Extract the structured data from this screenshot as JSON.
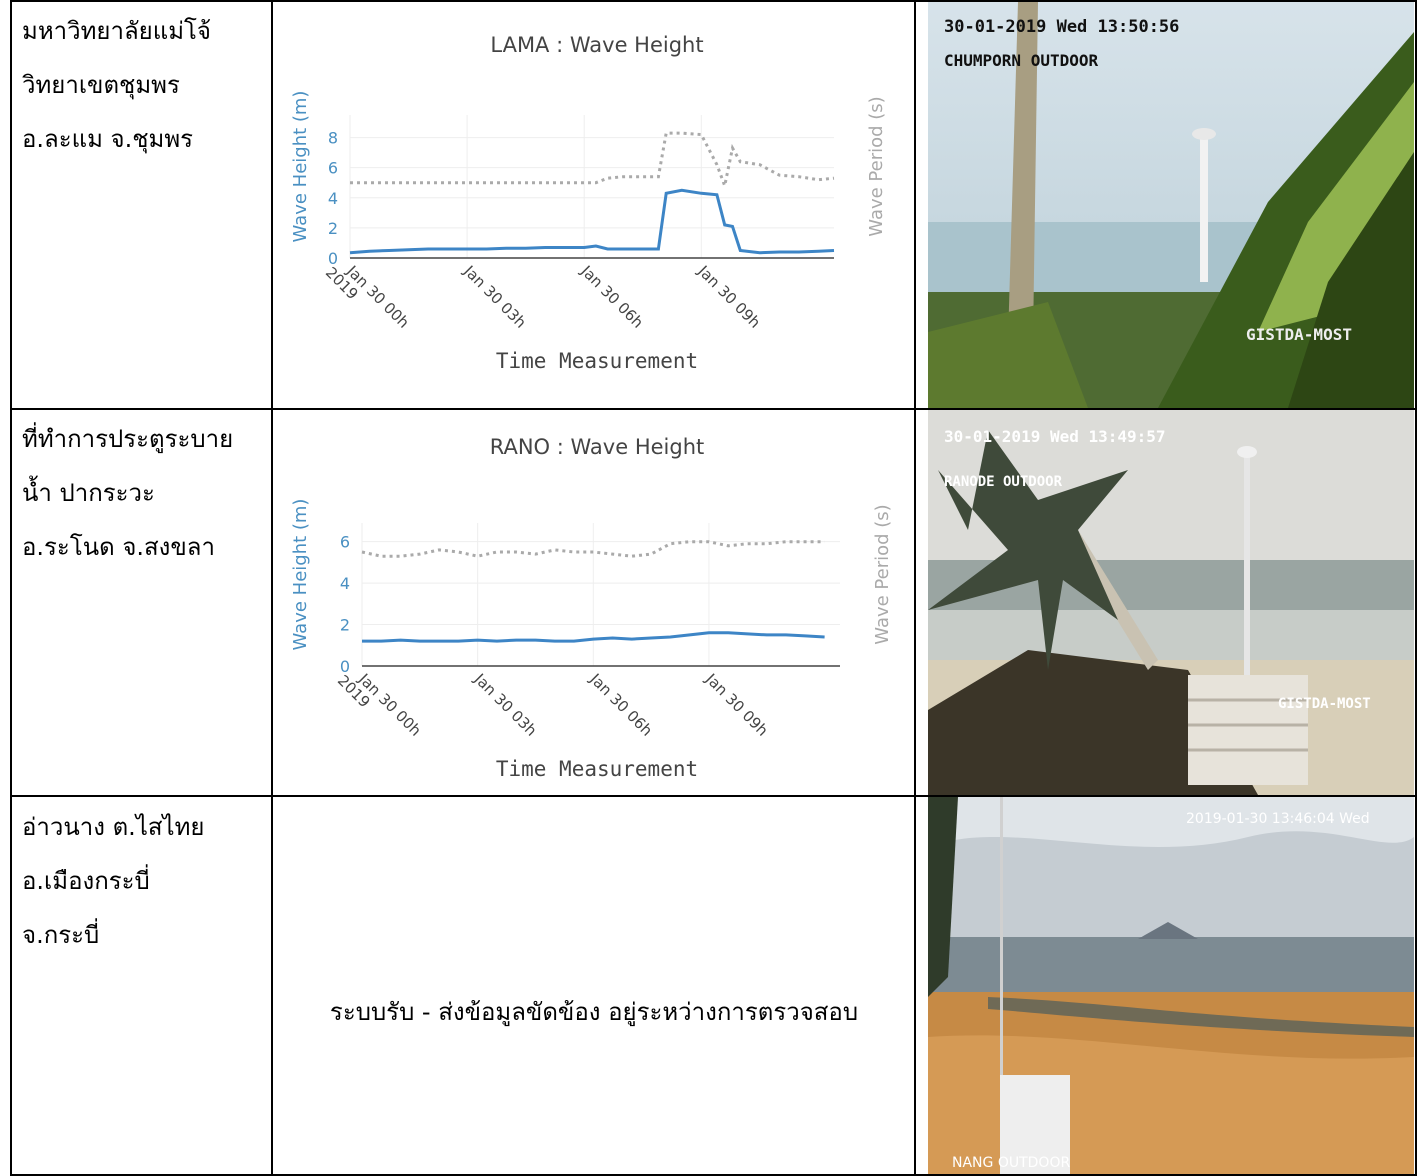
{
  "rows": [
    {
      "location": [
        "มหาวิทยาลัยแม่โจ้",
        "วิทยาเขตชุมพร",
        "อ.ละแม จ.ชุมพร"
      ],
      "camera": {
        "timestamp": "30-01-2019 Wed 13:50:56",
        "label": "CHUMPORN OUTDOOR",
        "watermark": "GISTDA-MOST"
      }
    },
    {
      "location": [
        "ที่ทำการประตูระบาย",
        "น้ำ ปากระวะ",
        "อ.ระโนด จ.สงขลา"
      ],
      "camera": {
        "timestamp": "30-01-2019 Wed 13:49:57",
        "label": "RANODE OUTDOOR",
        "watermark": "GISTDA-MOST"
      }
    },
    {
      "location": [
        "อ่าวนาง ต.ไสไทย",
        "อ.เมืองกระบี่",
        "จ.กระบี่"
      ],
      "status_text": "ระบบรับ - ส่งข้อมูลขัดข้อง อยู่ระหว่างการตรวจสอบ",
      "camera": {
        "timestamp": "2019-01-30 13:46:04 Wed",
        "label": "NANG OUTDOOR"
      }
    }
  ],
  "chart_data": [
    {
      "type": "line",
      "title": "LAMA : Wave Height",
      "xlabel": "Time Measurement",
      "ylabel": "Wave Height (m)",
      "y2label": "Wave Period (s)",
      "x_ticks": [
        "Jan 30 00h\n2019",
        "Jan 30 03h",
        "Jan 30 06h",
        "Jan 30 09h"
      ],
      "y_ticks": [
        0,
        2,
        4,
        6,
        8
      ],
      "ylim": [
        0,
        9.5
      ],
      "x_hours": [
        0,
        0.5,
        1,
        1.5,
        2,
        2.5,
        3,
        3.5,
        4,
        4.5,
        5,
        5.5,
        6,
        6.3,
        6.6,
        7,
        7.5,
        7.9,
        8.1,
        8.5,
        9,
        9.4,
        9.6,
        9.8,
        10,
        10.5,
        11,
        11.5,
        12,
        12.4
      ],
      "series": [
        {
          "name": "Wave Height",
          "color": "#3d85c6",
          "style": "solid",
          "values": [
            0.35,
            0.45,
            0.5,
            0.55,
            0.6,
            0.6,
            0.6,
            0.6,
            0.65,
            0.65,
            0.7,
            0.7,
            0.7,
            0.8,
            0.6,
            0.6,
            0.6,
            0.6,
            4.3,
            4.5,
            4.3,
            4.2,
            2.2,
            2.1,
            0.5,
            0.35,
            0.4,
            0.4,
            0.45,
            0.5
          ]
        },
        {
          "name": "Wave Period",
          "color": "#aaaaaa",
          "style": "dotted",
          "values": [
            5.0,
            5.0,
            5.0,
            5.0,
            5.0,
            5.0,
            5.0,
            5.0,
            5.0,
            5.0,
            5.0,
            5.0,
            5.0,
            5.0,
            5.3,
            5.4,
            5.4,
            5.4,
            8.3,
            8.3,
            8.2,
            6.2,
            4.8,
            7.3,
            6.4,
            6.2,
            5.5,
            5.4,
            5.2,
            5.3
          ]
        }
      ]
    },
    {
      "type": "line",
      "title": "RANO : Wave Height",
      "xlabel": "Time Measurement",
      "ylabel": "Wave Height (m)",
      "y2label": "Wave Period (s)",
      "x_ticks": [
        "Jan 30 00h\n2019",
        "Jan 30 03h",
        "Jan 30 06h",
        "Jan 30 09h"
      ],
      "y_ticks": [
        0,
        2,
        4,
        6
      ],
      "ylim": [
        0,
        6.9
      ],
      "x_hours": [
        0,
        0.5,
        1,
        1.5,
        2,
        2.5,
        3,
        3.5,
        4,
        4.5,
        5,
        5.5,
        6,
        6.5,
        7,
        7.5,
        8,
        8.5,
        9,
        9.5,
        10,
        10.5,
        11,
        11.5,
        12
      ],
      "series": [
        {
          "name": "Wave Height",
          "color": "#3d85c6",
          "style": "solid",
          "values": [
            1.2,
            1.2,
            1.25,
            1.2,
            1.2,
            1.2,
            1.25,
            1.2,
            1.25,
            1.25,
            1.2,
            1.2,
            1.3,
            1.35,
            1.3,
            1.35,
            1.4,
            1.5,
            1.6,
            1.6,
            1.55,
            1.5,
            1.5,
            1.45,
            1.4
          ]
        },
        {
          "name": "Wave Period",
          "color": "#aaaaaa",
          "style": "dotted",
          "values": [
            5.5,
            5.3,
            5.3,
            5.4,
            5.6,
            5.5,
            5.3,
            5.5,
            5.5,
            5.4,
            5.6,
            5.5,
            5.5,
            5.4,
            5.3,
            5.4,
            5.9,
            6.0,
            6.0,
            5.8,
            5.9,
            5.9,
            6.0,
            6.0,
            6.0
          ]
        }
      ]
    }
  ]
}
